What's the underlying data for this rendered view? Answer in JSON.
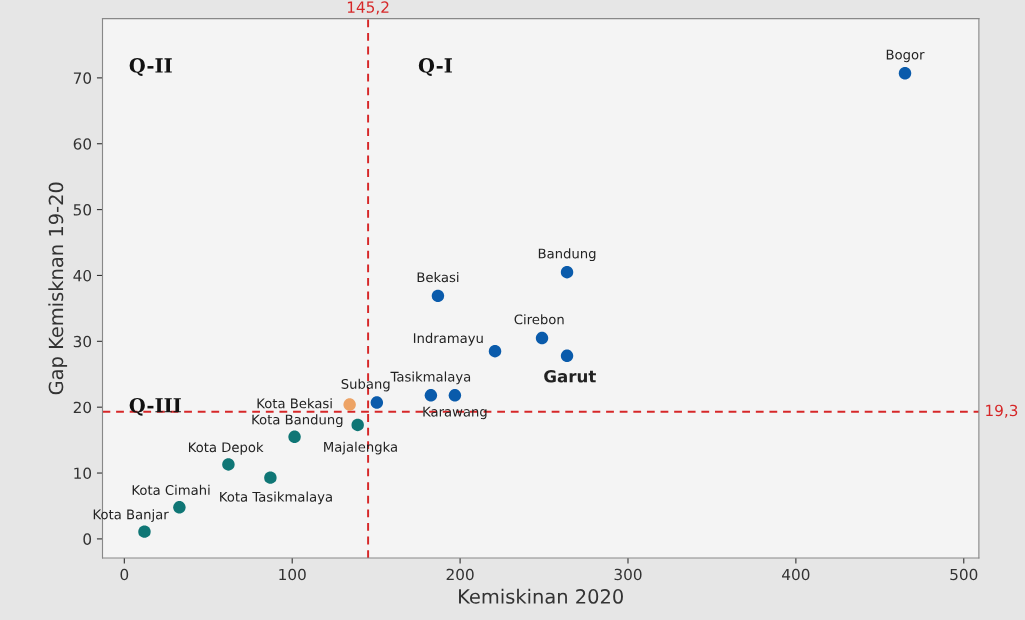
{
  "chart_data": {
    "type": "scatter",
    "xlabel": "Kemiskinan 2020",
    "ylabel": "Gap Kemisknan 19-20",
    "x": [
      465,
      263.7,
      186.8,
      248.8,
      220.8,
      263.7,
      182.6,
      196.9,
      150.4,
      134.2,
      139,
      101.4,
      62,
      87,
      32.8,
      12
    ],
    "values": [
      70.7,
      40.5,
      36.9,
      30.5,
      28.5,
      27.8,
      21.8,
      21.8,
      20.7,
      20.4,
      17.3,
      15.5,
      11.3,
      9.3,
      4.8,
      1.1
    ],
    "colors": [
      "#0a5bab",
      "#0a5bab",
      "#0a5bab",
      "#0a5bab",
      "#0a5bab",
      "#0a5bab",
      "#0a5bab",
      "#0a5bab",
      "#0a5bab",
      "#eda365",
      "#0f7675",
      "#0f7675",
      "#0f7675",
      "#0f7675",
      "#0f7675",
      "#0f7675"
    ],
    "marker": "circle",
    "xlim": [
      -13,
      509
    ],
    "ylim": [
      -2.9,
      79
    ],
    "xticks": [
      0,
      100,
      200,
      300,
      400,
      500
    ],
    "yticks": [
      0,
      10,
      20,
      30,
      40,
      50,
      60,
      70
    ],
    "grid": false,
    "ref_lines": [
      {
        "axis": "x",
        "value": 145.2,
        "label": "145,2",
        "color": "#d62728",
        "line_style": "dashed"
      },
      {
        "axis": "y",
        "value": 19.3,
        "label": "19,3",
        "color": "#d62728",
        "line_style": "dashed"
      }
    ],
    "annotations": [
      "Q-II",
      "Q-I",
      "Q-III",
      {
        "text": "Bogor",
        "x": 465,
        "y": 70.7
      },
      {
        "text": "Bandung",
        "x": 263.7,
        "y": 40.5
      },
      {
        "text": "Bekasi",
        "x": 186.8,
        "y": 36.9
      },
      {
        "text": "Cirebon",
        "x": 248.8,
        "y": 30.5
      },
      {
        "text": "Indramayu",
        "x": 220.8,
        "y": 28.5
      },
      {
        "text": "Garut",
        "x": 263.7,
        "y": 27.8
      },
      {
        "text": "Tasikmalaya",
        "x": 182.6,
        "y": 21.8
      },
      {
        "text": "Karawang",
        "x": 196.9,
        "y": 21.8
      },
      {
        "text": "Subang",
        "x": 150.4,
        "y": 20.7
      },
      {
        "text": "Kota Bekasi",
        "x": 134.2,
        "y": 20.4
      },
      {
        "text": "Majalengka",
        "x": 139,
        "y": 17.3
      },
      {
        "text": "Kota Bandung",
        "x": 101.4,
        "y": 15.5
      },
      {
        "text": "Kota Depok",
        "x": 62,
        "y": 11.3
      },
      {
        "text": "Kota Tasikmalaya",
        "x": 87,
        "y": 9.3
      },
      {
        "text": "Kota Cimahi",
        "x": 32.8,
        "y": 4.8
      },
      {
        "text": "Kota Banjar",
        "x": 12,
        "y": 1.1
      }
    ]
  }
}
